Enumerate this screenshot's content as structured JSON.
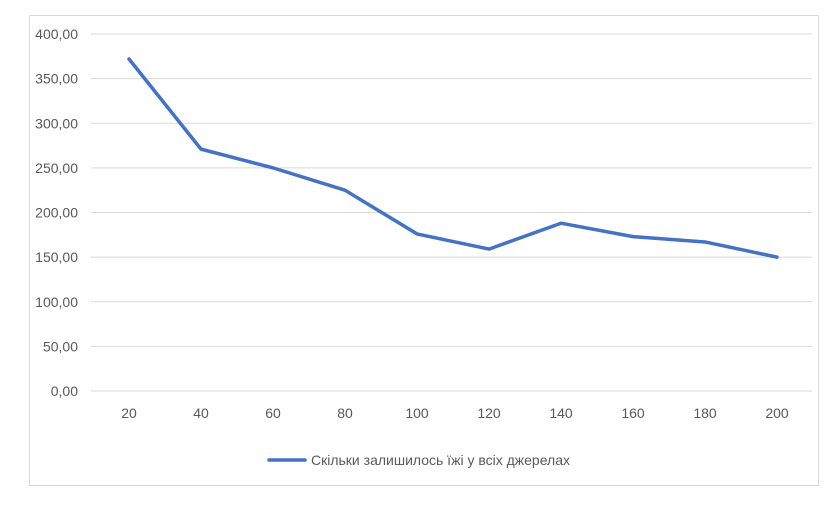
{
  "chart_data": {
    "type": "line",
    "x": [
      20,
      40,
      60,
      80,
      100,
      120,
      140,
      160,
      180,
      200
    ],
    "series": [
      {
        "name": "Скільки залишилось їжі у всіх джерелах",
        "values": [
          372,
          271,
          250,
          225,
          176,
          159,
          188,
          173,
          167,
          150
        ],
        "color": "#4472C4"
      }
    ],
    "ylim": [
      0,
      400
    ],
    "y_ticks": [
      "0,00",
      "50,00",
      "100,00",
      "150,00",
      "200,00",
      "250,00",
      "300,00",
      "350,00",
      "400,00"
    ],
    "x_ticks": [
      "20",
      "40",
      "60",
      "80",
      "100",
      "120",
      "140",
      "160",
      "180",
      "200"
    ],
    "grid": true,
    "legend": "bottom",
    "gridline_color": "#d9d9d9"
  }
}
